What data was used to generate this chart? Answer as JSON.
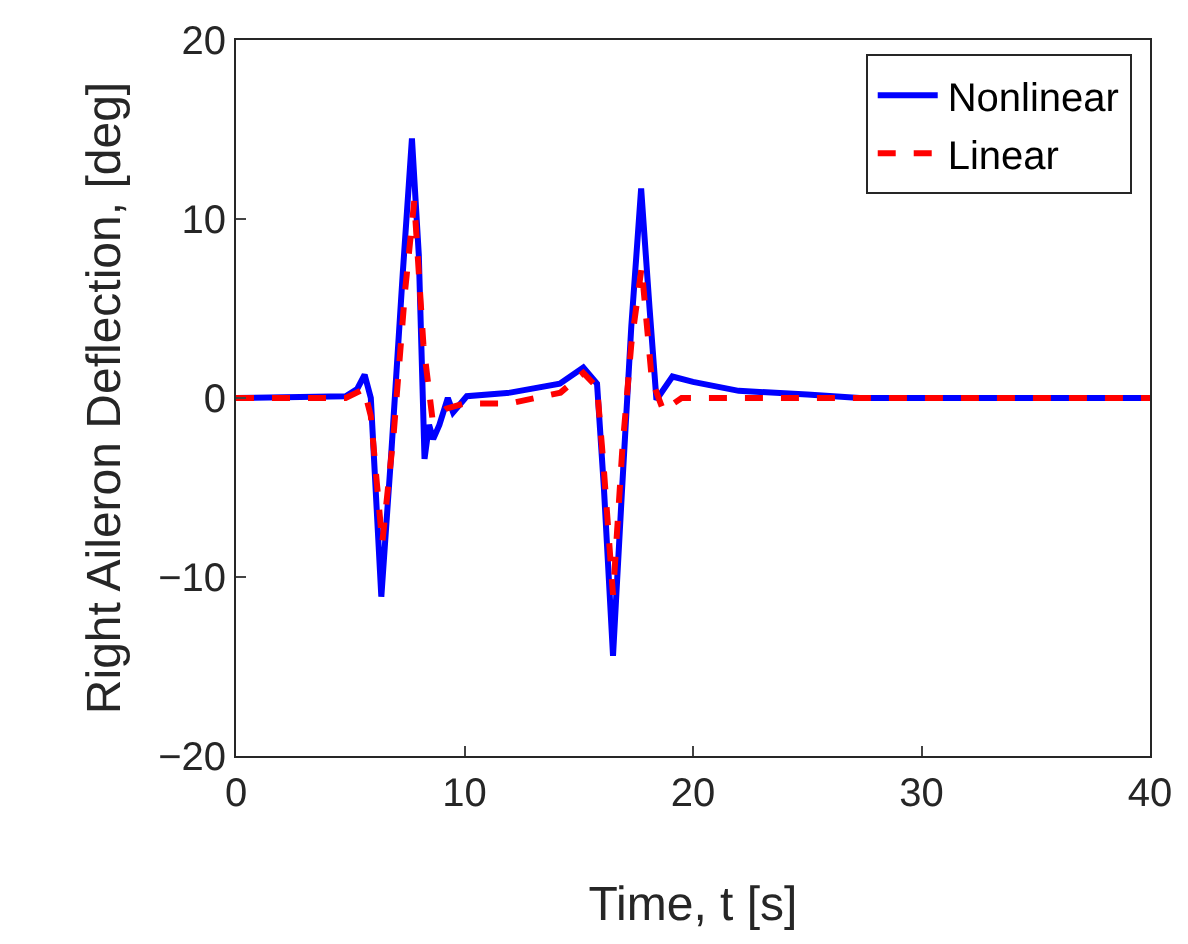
{
  "chart_data": {
    "type": "line",
    "xlabel": "Time, t [s]",
    "ylabel": "Right Aileron Deflection, [deg]",
    "xlim": [
      0,
      40
    ],
    "ylim": [
      -20,
      20
    ],
    "xticks": [
      0,
      10,
      20,
      30,
      40
    ],
    "yticks": [
      20,
      10,
      0,
      {
        "value": -10,
        "label": "−10"
      },
      {
        "value": -20,
        "label": "−20"
      }
    ],
    "grid": false,
    "legend": "top right",
    "series": [
      {
        "name": "Nonlinear",
        "color": "#0000ff",
        "line_style": "solid",
        "x": [
          0,
          4.8,
          5.3,
          5.63,
          5.9,
          6.36,
          6.8,
          7.3,
          7.7,
          8.0,
          8.25,
          8.45,
          8.63,
          8.9,
          9.27,
          9.5,
          10.1,
          12,
          14.17,
          15.2,
          15.8,
          16.1,
          16.5,
          16.9,
          17.3,
          17.73,
          18.1,
          18.4,
          19.1,
          20,
          22,
          25,
          27.3,
          30,
          40
        ],
        "values": [
          0,
          0.1,
          0.5,
          1.3,
          0,
          -11.1,
          -3,
          7,
          14.5,
          8,
          -3.4,
          -1.5,
          -2.3,
          -1.5,
          0,
          -0.8,
          0.1,
          0.3,
          0.8,
          1.7,
          0.8,
          -5,
          -14.4,
          -5,
          4,
          11.7,
          5,
          -0.1,
          1.2,
          0.9,
          0.4,
          0.2,
          0,
          0,
          0
        ]
      },
      {
        "name": "Linear",
        "color": "#ff0000",
        "line_style": "dashed",
        "x": [
          0,
          4.8,
          5.6,
          5.9,
          6.4,
          6.9,
          7.4,
          7.8,
          8.2,
          8.6,
          9.2,
          10,
          12,
          14.2,
          15.2,
          15.8,
          16.1,
          16.5,
          16.9,
          17.3,
          17.75,
          18.2,
          18.7,
          19.5,
          22,
          40
        ],
        "values": [
          0,
          0,
          0.5,
          -1,
          -8.1,
          -2,
          6,
          11,
          3,
          -1.2,
          -0.6,
          -0.3,
          -0.3,
          0.3,
          1.4,
          0.6,
          -4,
          -11,
          -3,
          3,
          7.3,
          1,
          -0.7,
          0,
          0,
          0
        ]
      }
    ]
  }
}
